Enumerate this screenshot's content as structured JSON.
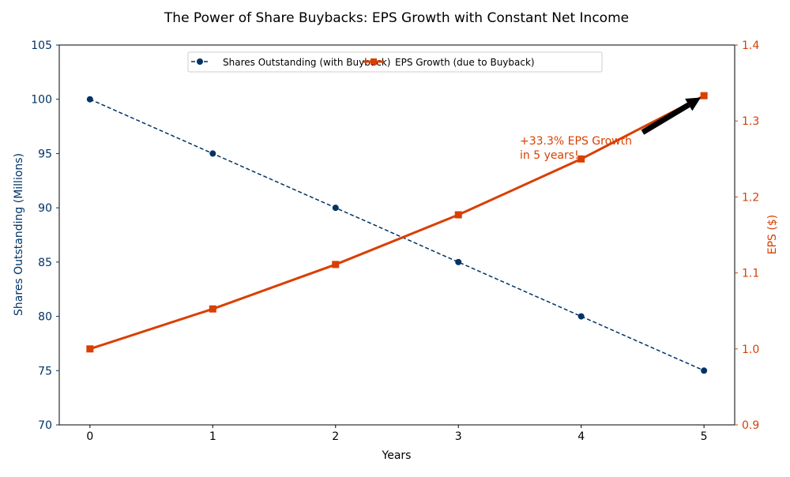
{
  "chart_data": {
    "type": "line",
    "title": "The Power of Share Buybacks: EPS Growth with Constant Net Income",
    "xlabel": "Years",
    "ylabel_left": "Shares Outstanding (Millions)",
    "ylabel_right": "EPS ($)",
    "x": [
      0,
      1,
      2,
      3,
      4,
      5
    ],
    "xticks": [
      "0",
      "1",
      "2",
      "3",
      "4",
      "5"
    ],
    "xlim": [
      -0.25,
      5.25
    ],
    "ylim_left": [
      70,
      105
    ],
    "ylim_right": [
      0.9,
      1.4
    ],
    "yticks_left": [
      "70",
      "75",
      "80",
      "85",
      "90",
      "95",
      "100",
      "105"
    ],
    "yticks_right": [
      "0.9",
      "1.0",
      "1.1",
      "1.2",
      "1.3",
      "1.4"
    ],
    "grid": false,
    "legend_position": "top-center",
    "series": [
      {
        "name": "Shares Outstanding (with Buyback)",
        "axis": "left",
        "values": [
          100,
          95,
          90,
          85,
          80,
          75
        ],
        "color": "#003366",
        "style": "dashed",
        "marker": "circle"
      },
      {
        "name": "EPS Growth (due to Buyback)",
        "axis": "right",
        "values": [
          1.0,
          1.0526,
          1.1111,
          1.1765,
          1.25,
          1.3333
        ],
        "color": "#d93f00",
        "style": "solid",
        "marker": "square"
      }
    ],
    "annotation": {
      "text_line1": "+33.3% EPS Growth",
      "text_line2": "in 5 years!",
      "color": "#d93f00",
      "arrow_from": [
        4.5,
        1.285
      ],
      "arrow_to": [
        5,
        1.333
      ]
    }
  }
}
